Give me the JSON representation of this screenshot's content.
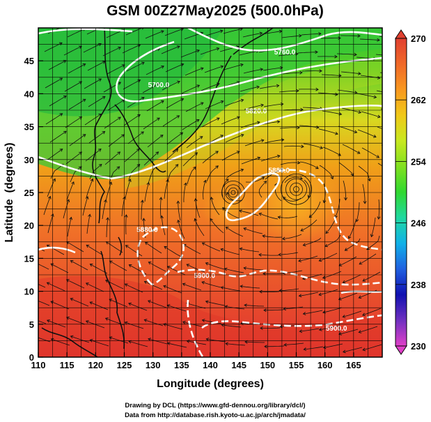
{
  "chart_data": {
    "type": "heatmap",
    "title": "GSM 00Z27May2025 (500.0hPa)",
    "xlabel": "Longitude (degrees)",
    "ylabel": "Latitude  (degrees)",
    "xlim": [
      110,
      170
    ],
    "ylim": [
      0,
      50
    ],
    "xticks": [
      110,
      115,
      120,
      125,
      130,
      135,
      140,
      145,
      150,
      155,
      160,
      165
    ],
    "yticks": [
      0,
      5,
      10,
      15,
      20,
      25,
      30,
      35,
      40,
      45
    ],
    "colorbar": {
      "min": 230,
      "max": 270,
      "ticks": [
        270,
        262,
        254,
        246,
        238,
        230
      ],
      "colors": [
        "#e040c8",
        "#7030c0",
        "#1010b0",
        "#2060e0",
        "#10b0e8",
        "#20d8a0",
        "#30d830",
        "#80e020",
        "#c8e820",
        "#f0c818",
        "#f89820",
        "#f06828",
        "#e04030"
      ]
    },
    "contours": [
      {
        "label": "5700.0",
        "lon": 131,
        "lat": 41
      },
      {
        "label": "5760.0",
        "lon": 153,
        "lat": 46
      },
      {
        "label": "5820.0",
        "lon": 148,
        "lat": 37
      },
      {
        "label": "5880.0",
        "lon": 152,
        "lat": 28
      },
      {
        "label": "5880.0",
        "lon": 129,
        "lat": 19
      },
      {
        "label": "5900.0",
        "lon": 139,
        "lat": 12
      },
      {
        "label": "5900.0",
        "lon": 162,
        "lat": 4
      }
    ],
    "vortex_centers": [
      {
        "lon": 155,
        "lat": 25.5
      },
      {
        "lon": 144,
        "lat": 25
      }
    ],
    "credits": [
      "Drawing by DCL (https://www.gfd-dennou.org/library/dcl/)",
      "Data from http://database.rish.kyoto-u.ac.jp/arch/jmadata/"
    ]
  }
}
